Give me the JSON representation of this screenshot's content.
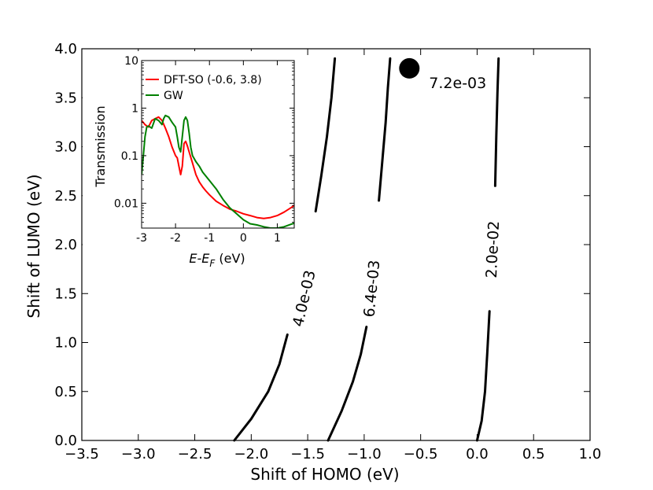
{
  "chart_data": [
    {
      "type": "line",
      "kind": "contour",
      "title": "",
      "xlabel": "Shift of HOMO (eV)",
      "ylabel": "Shift of LUMO (eV)",
      "xlim": [
        -3.5,
        1.0
      ],
      "ylim": [
        0.0,
        4.0
      ],
      "xticks": [
        -3.5,
        -3.0,
        -2.5,
        -2.0,
        -1.5,
        -1.0,
        -0.5,
        0.0,
        0.5,
        1.0
      ],
      "xtick_labels": [
        "−3.5",
        "−3.0",
        "−2.5",
        "−2.0",
        "−1.5",
        "−1.0",
        "−0.5",
        "0.0",
        "0.5",
        "1.0"
      ],
      "yticks": [
        0.0,
        0.5,
        1.0,
        1.5,
        2.0,
        2.5,
        3.0,
        3.5,
        4.0
      ],
      "ytick_labels": [
        "0.0",
        "0.5",
        "1.0",
        "1.5",
        "2.0",
        "2.5",
        "3.0",
        "3.5",
        "4.0"
      ],
      "contours": [
        {
          "level_label": "4.0e-03",
          "label_pos": [
            -1.53,
            1.45
          ],
          "segments": [
            [
              [
                -2.15,
                0.0
              ],
              [
                -2.0,
                0.22
              ],
              [
                -1.85,
                0.5
              ],
              [
                -1.75,
                0.78
              ],
              [
                -1.68,
                1.08
              ]
            ],
            [
              [
                -1.43,
                2.34
              ],
              [
                -1.38,
                2.7
              ],
              [
                -1.33,
                3.1
              ],
              [
                -1.29,
                3.5
              ],
              [
                -1.26,
                3.9
              ]
            ]
          ]
        },
        {
          "level_label": "6.4e-03",
          "label_pos": [
            -0.93,
            1.55
          ],
          "segments": [
            [
              [
                -1.32,
                0.0
              ],
              [
                -1.2,
                0.3
              ],
              [
                -1.1,
                0.6
              ],
              [
                -1.03,
                0.88
              ],
              [
                -0.98,
                1.16
              ]
            ],
            [
              [
                -0.87,
                2.45
              ],
              [
                -0.84,
                2.85
              ],
              [
                -0.81,
                3.25
              ],
              [
                -0.79,
                3.6
              ],
              [
                -0.77,
                3.9
              ]
            ]
          ]
        },
        {
          "level_label": "2.0e-02",
          "label_pos": [
            0.14,
            1.95
          ],
          "segments": [
            [
              [
                0.0,
                0.0
              ],
              [
                0.04,
                0.2
              ],
              [
                0.07,
                0.5
              ],
              [
                0.09,
                0.9
              ],
              [
                0.11,
                1.32
              ]
            ],
            [
              [
                0.16,
                2.6
              ],
              [
                0.17,
                3.1
              ],
              [
                0.18,
                3.55
              ],
              [
                0.19,
                3.9
              ]
            ]
          ]
        }
      ],
      "marker": {
        "x": -0.6,
        "y": 3.8,
        "label": "7.2e-03"
      }
    },
    {
      "type": "line",
      "title": "",
      "xlabel": "E-E_F (eV)",
      "xlabel_main": "E-E",
      "xlabel_sub": "F",
      "xlabel_unit": " (eV)",
      "ylabel": "Transmission",
      "yscale": "log",
      "xlim": [
        -3.0,
        1.5
      ],
      "ylim": [
        0.003,
        10
      ],
      "xticks": [
        -3,
        -2,
        -1,
        0,
        1
      ],
      "xtick_labels": [
        "-3",
        "-2",
        "-1",
        "0",
        "1"
      ],
      "yticks": [
        0.01,
        0.1,
        1,
        10
      ],
      "ytick_labels": [
        "0.01",
        "0.1",
        "1",
        "10"
      ],
      "legend_position": "top-left",
      "series": [
        {
          "name": "DFT-SO (-0.6, 3.8)",
          "color": "#ff0000",
          "points": [
            [
              -3.0,
              0.55
            ],
            [
              -2.9,
              0.45
            ],
            [
              -2.8,
              0.4
            ],
            [
              -2.7,
              0.55
            ],
            [
              -2.6,
              0.6
            ],
            [
              -2.5,
              0.65
            ],
            [
              -2.4,
              0.55
            ],
            [
              -2.3,
              0.38
            ],
            [
              -2.2,
              0.25
            ],
            [
              -2.1,
              0.15
            ],
            [
              -2.0,
              0.1
            ],
            [
              -1.95,
              0.09
            ],
            [
              -1.9,
              0.06
            ],
            [
              -1.85,
              0.04
            ],
            [
              -1.8,
              0.06
            ],
            [
              -1.75,
              0.18
            ],
            [
              -1.7,
              0.2
            ],
            [
              -1.65,
              0.16
            ],
            [
              -1.6,
              0.12
            ],
            [
              -1.5,
              0.07
            ],
            [
              -1.4,
              0.04
            ],
            [
              -1.3,
              0.028
            ],
            [
              -1.2,
              0.022
            ],
            [
              -1.1,
              0.018
            ],
            [
              -1.0,
              0.015
            ],
            [
              -0.8,
              0.011
            ],
            [
              -0.6,
              0.009
            ],
            [
              -0.4,
              0.0075
            ],
            [
              -0.2,
              0.0068
            ],
            [
              0.0,
              0.006
            ],
            [
              0.2,
              0.0055
            ],
            [
              0.4,
              0.005
            ],
            [
              0.6,
              0.0048
            ],
            [
              0.8,
              0.005
            ],
            [
              1.0,
              0.0055
            ],
            [
              1.2,
              0.0065
            ],
            [
              1.4,
              0.008
            ],
            [
              1.5,
              0.009
            ]
          ]
        },
        {
          "name": "GW",
          "color": "#008000",
          "points": [
            [
              -3.0,
              0.04
            ],
            [
              -2.95,
              0.1
            ],
            [
              -2.9,
              0.25
            ],
            [
              -2.85,
              0.4
            ],
            [
              -2.8,
              0.42
            ],
            [
              -2.7,
              0.38
            ],
            [
              -2.6,
              0.6
            ],
            [
              -2.5,
              0.55
            ],
            [
              -2.4,
              0.45
            ],
            [
              -2.35,
              0.6
            ],
            [
              -2.3,
              0.7
            ],
            [
              -2.2,
              0.65
            ],
            [
              -2.1,
              0.5
            ],
            [
              -2.0,
              0.4
            ],
            [
              -1.95,
              0.25
            ],
            [
              -1.9,
              0.15
            ],
            [
              -1.85,
              0.12
            ],
            [
              -1.8,
              0.25
            ],
            [
              -1.75,
              0.55
            ],
            [
              -1.7,
              0.65
            ],
            [
              -1.65,
              0.55
            ],
            [
              -1.6,
              0.3
            ],
            [
              -1.55,
              0.15
            ],
            [
              -1.5,
              0.1
            ],
            [
              -1.4,
              0.075
            ],
            [
              -1.3,
              0.06
            ],
            [
              -1.2,
              0.045
            ],
            [
              -1.0,
              0.03
            ],
            [
              -0.8,
              0.02
            ],
            [
              -0.6,
              0.012
            ],
            [
              -0.4,
              0.008
            ],
            [
              -0.2,
              0.006
            ],
            [
              0.0,
              0.0045
            ],
            [
              0.2,
              0.0037
            ],
            [
              0.4,
              0.0035
            ],
            [
              0.6,
              0.0032
            ],
            [
              0.8,
              0.003
            ],
            [
              1.0,
              0.003
            ],
            [
              1.2,
              0.0032
            ],
            [
              1.4,
              0.0036
            ],
            [
              1.5,
              0.0038
            ]
          ]
        }
      ]
    }
  ]
}
